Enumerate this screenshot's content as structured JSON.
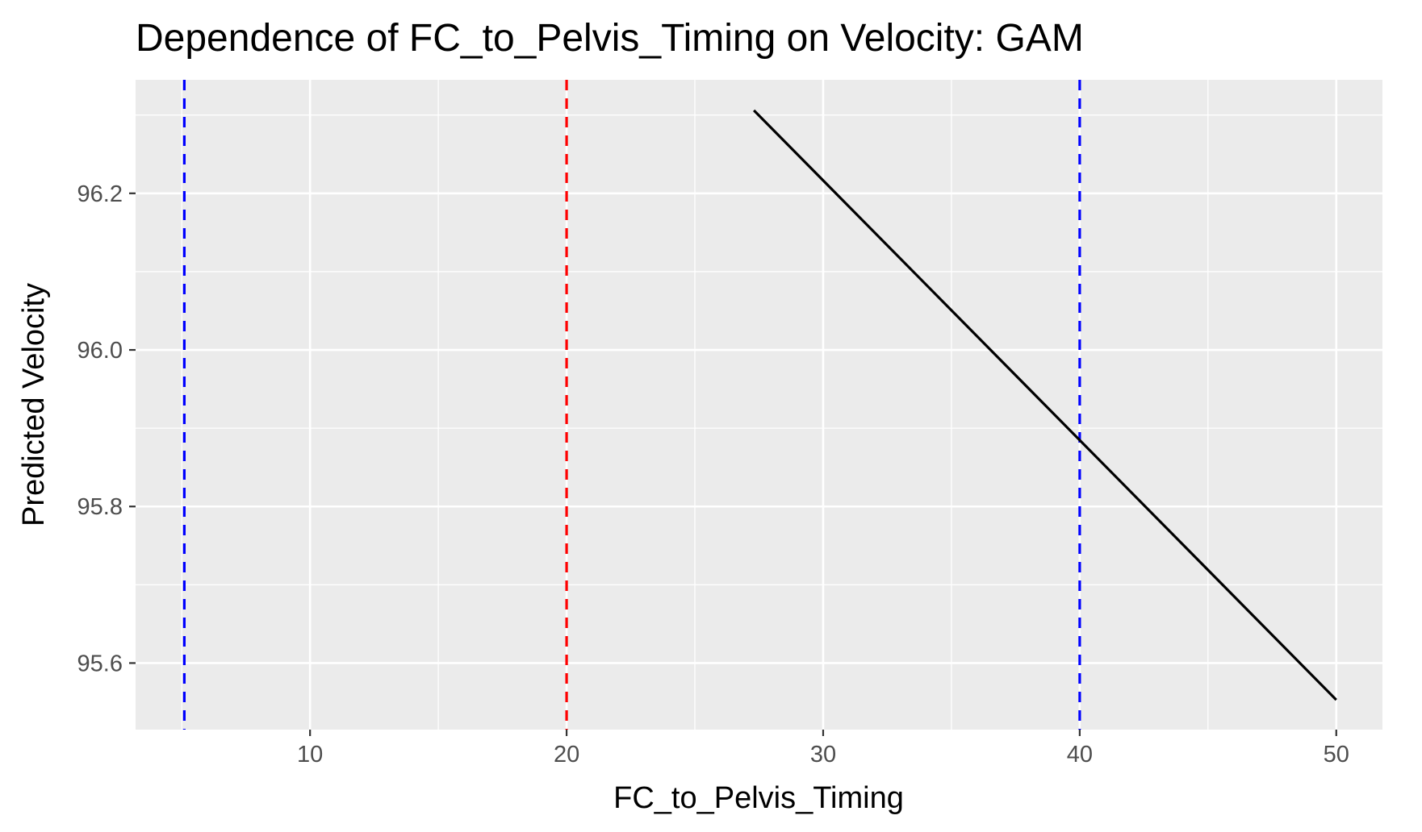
{
  "chart_data": {
    "type": "line",
    "title": "Dependence of FC_to_Pelvis_Timing on Velocity: GAM",
    "xlabel": "FC_to_Pelvis_Timing",
    "ylabel": "Predicted Velocity",
    "xlim": [
      3.2,
      51.8
    ],
    "ylim": [
      95.515,
      96.345
    ],
    "x_ticks": [
      10,
      20,
      30,
      40,
      50
    ],
    "x_tick_labels": [
      "10",
      "20",
      "30",
      "40",
      "50"
    ],
    "x_minor_ticks": [
      5,
      15,
      25,
      35,
      45
    ],
    "y_ticks": [
      95.6,
      95.8,
      96.0,
      96.2
    ],
    "y_tick_labels": [
      "95.6",
      "95.8",
      "96.0",
      "96.2"
    ],
    "y_minor_ticks": [
      95.7,
      95.9,
      96.1,
      96.3
    ],
    "grid": true,
    "background": "#ebebeb",
    "series": [
      {
        "color": "#000000",
        "x": [
          27.3,
          50.0
        ],
        "y": [
          96.306,
          95.553
        ]
      }
    ],
    "reference_lines": [
      {
        "x": 5.1,
        "color": "#0000ff",
        "style": "dashed"
      },
      {
        "x": 20.0,
        "color": "#ff0000",
        "style": "dashed"
      },
      {
        "x": 40.0,
        "color": "#0000ff",
        "style": "dashed"
      }
    ]
  }
}
